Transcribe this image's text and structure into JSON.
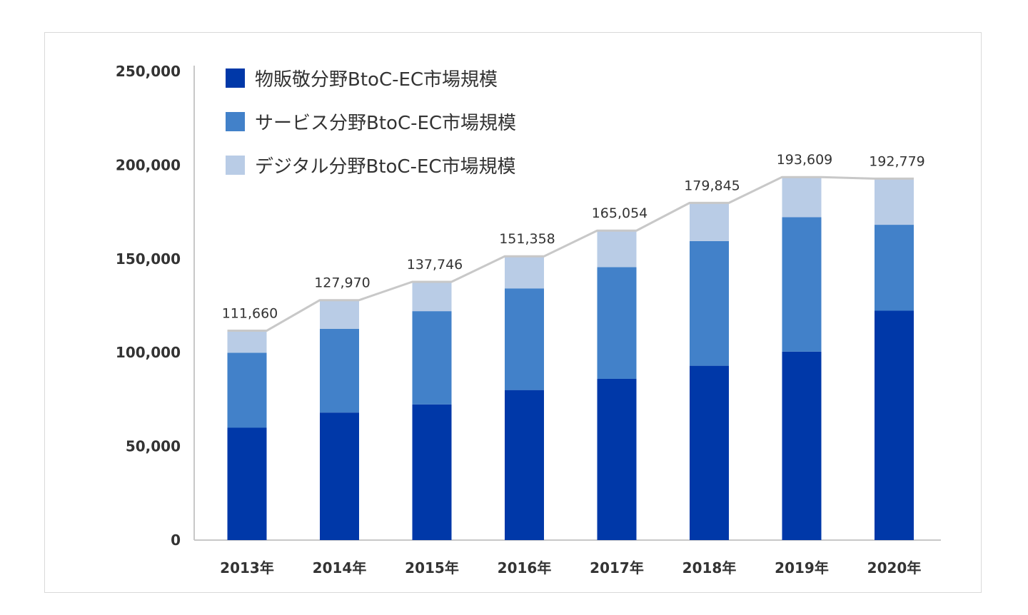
{
  "chart_data": {
    "type": "bar",
    "stacked": true,
    "categories": [
      "2013年",
      "2014年",
      "2015年",
      "2016年",
      "2017年",
      "2018年",
      "2019年",
      "2020年"
    ],
    "series": [
      {
        "name": "物販敬分野BtoC-EC市場規模",
        "color": "#0038a8",
        "values": [
          59931,
          68043,
          72398,
          80043,
          86008,
          92992,
          100515,
          122333
        ]
      },
      {
        "name": "サービス分野BtoC-EC市場規模",
        "color": "#4281c9",
        "values": [
          40000,
          44600,
          49700,
          54200,
          59568,
          66471,
          71672,
          45832
        ]
      },
      {
        "name": "デジタル分野BtoC-EC市場規模",
        "color": "#b9cce6",
        "values": [
          11729,
          15327,
          15648,
          17115,
          19478,
          20382,
          21422,
          24614
        ]
      }
    ],
    "totals": [
      111660,
      127970,
      137746,
      151358,
      165054,
      179845,
      193609,
      192779
    ],
    "total_labels": [
      "111,660",
      "127,970",
      "137,746",
      "151,358",
      "165,054",
      "179,845",
      "193,609",
      "192,779"
    ],
    "yticks": [
      0,
      50000,
      100000,
      150000,
      200000,
      250000
    ],
    "ytick_labels": [
      "0",
      "50,000",
      "100,000",
      "150,000",
      "200,000",
      "250,000"
    ],
    "ylim": [
      0,
      250000
    ],
    "legend_position": "top-left",
    "line_color": "#c8c8c8"
  }
}
